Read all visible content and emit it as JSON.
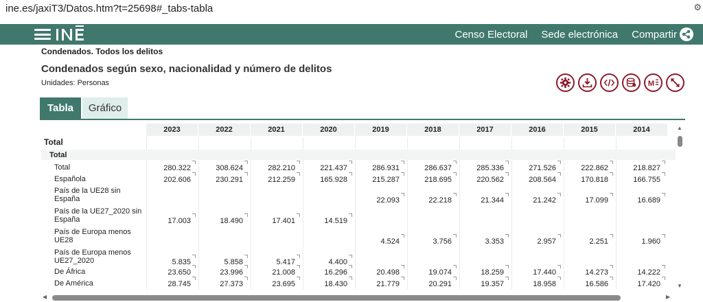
{
  "browser": {
    "url": "ine.es/jaxiT3/Datos.htm?t=25698#_tabs-tabla"
  },
  "header": {
    "logo": "INE",
    "nav": [
      "Censo Electoral",
      "Sede electrónica",
      "Compartir"
    ]
  },
  "page": {
    "breadcrumb": "Condenados. Todos los delitos",
    "title": "Condenados según sexo, nacionalidad y número de delitos",
    "units": "Unidades:  Personas"
  },
  "toolbar": {
    "icons": [
      "settings-icon",
      "download-icon",
      "embed-code-icon",
      "database-icon",
      "markdown-icon",
      "expand-icon"
    ]
  },
  "tabs": {
    "table": "Tabla",
    "chart": "Gráfico"
  },
  "table": {
    "years": [
      "2023",
      "2022",
      "2021",
      "2020",
      "2019",
      "2018",
      "2017",
      "2016",
      "2015",
      "2014"
    ],
    "group1": "Total",
    "group2": "Total",
    "rows": [
      {
        "label": "Total",
        "values": [
          "280.322",
          "308.624",
          "282.210",
          "221.437",
          "286.931",
          "286.637",
          "285.336",
          "271.526",
          "222.862",
          "218.827"
        ]
      },
      {
        "label": "Española",
        "values": [
          "202.606",
          "230.291",
          "212.259",
          "165.928",
          "215.287",
          "218.695",
          "220.562",
          "208.564",
          "170.818",
          "166.755"
        ]
      },
      {
        "label": "País de la UE28 sin España",
        "values": [
          "",
          "",
          "",
          "",
          "22.093",
          "22.218",
          "21.344",
          "21.242",
          "17.099",
          "16.689"
        ]
      },
      {
        "label": "País de la UE27_2020 sin España",
        "values": [
          "17.003",
          "18.490",
          "17.401",
          "14.519",
          "",
          "",
          "",
          "",
          "",
          ""
        ]
      },
      {
        "label": "País de Europa menos UE28",
        "values": [
          "",
          "",
          "",
          "",
          "4.524",
          "3.756",
          "3.353",
          "2.957",
          "2.251",
          "1.960"
        ]
      },
      {
        "label": "País de Europa menos UE27_2020",
        "values": [
          "5.835",
          "5.858",
          "5.417",
          "4.400",
          "",
          "",
          "",
          "",
          "",
          ""
        ]
      },
      {
        "label": "De África",
        "values": [
          "23.650",
          "23.996",
          "21.008",
          "16.296",
          "20.498",
          "19.074",
          "18.259",
          "17.440",
          "14.273",
          "14.222"
        ]
      },
      {
        "label": "De América",
        "values": [
          "28.745",
          "27.373",
          "23.695",
          "18.430",
          "21.779",
          "20.291",
          "19.357",
          "18.958",
          "16.586",
          "17.420"
        ]
      }
    ]
  },
  "colors": {
    "header": "#40786d",
    "accent": "#8c1c2c",
    "tab_inactive": "#dfeeea"
  }
}
